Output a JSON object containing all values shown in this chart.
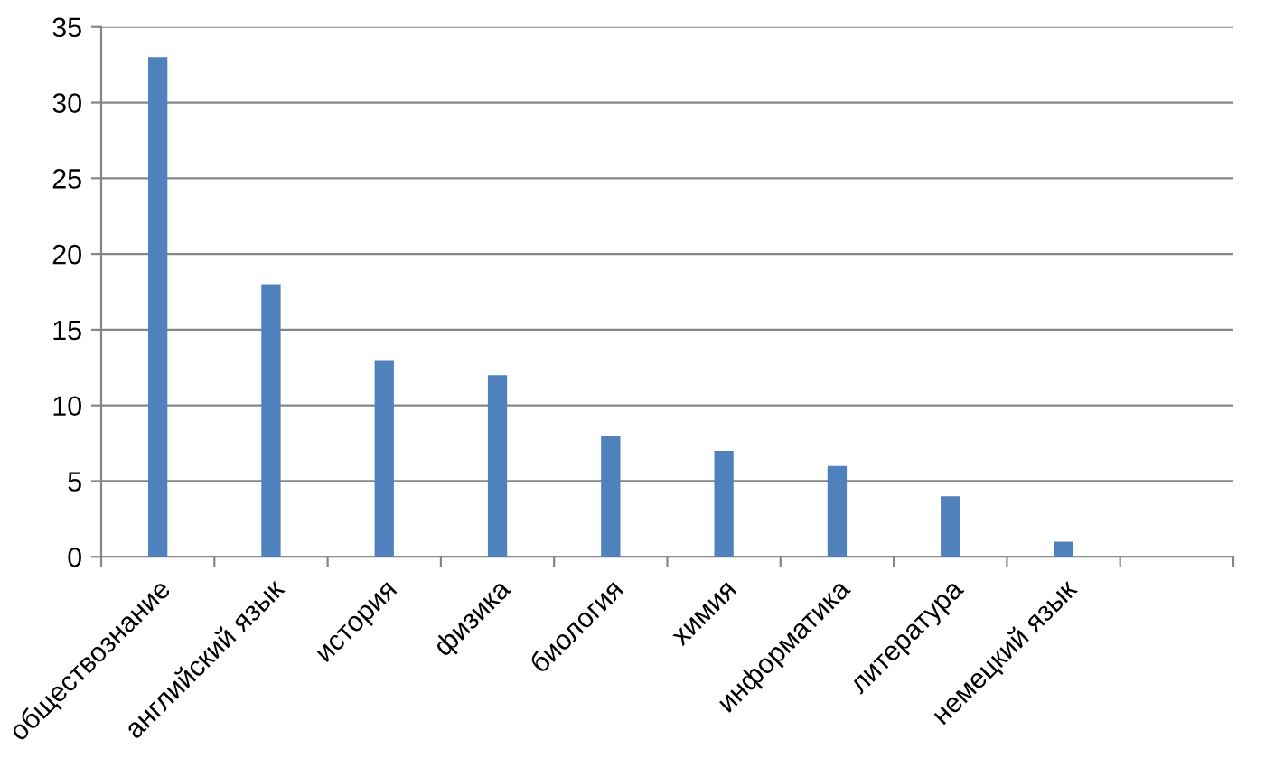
{
  "chart_data": {
    "type": "bar",
    "categories": [
      "обществознание",
      "английский язык",
      "история",
      "физика",
      "биология",
      "химия",
      "информатика",
      "литература",
      "немецкий язык",
      null
    ],
    "values": [
      33,
      18,
      13,
      12,
      8,
      7,
      6,
      4,
      1,
      null
    ],
    "color": "#4f81bd",
    "ylim": [
      0,
      35
    ],
    "yticks": [
      0,
      5,
      10,
      15,
      20,
      25,
      30,
      35
    ],
    "grid": "y",
    "legend": false
  }
}
